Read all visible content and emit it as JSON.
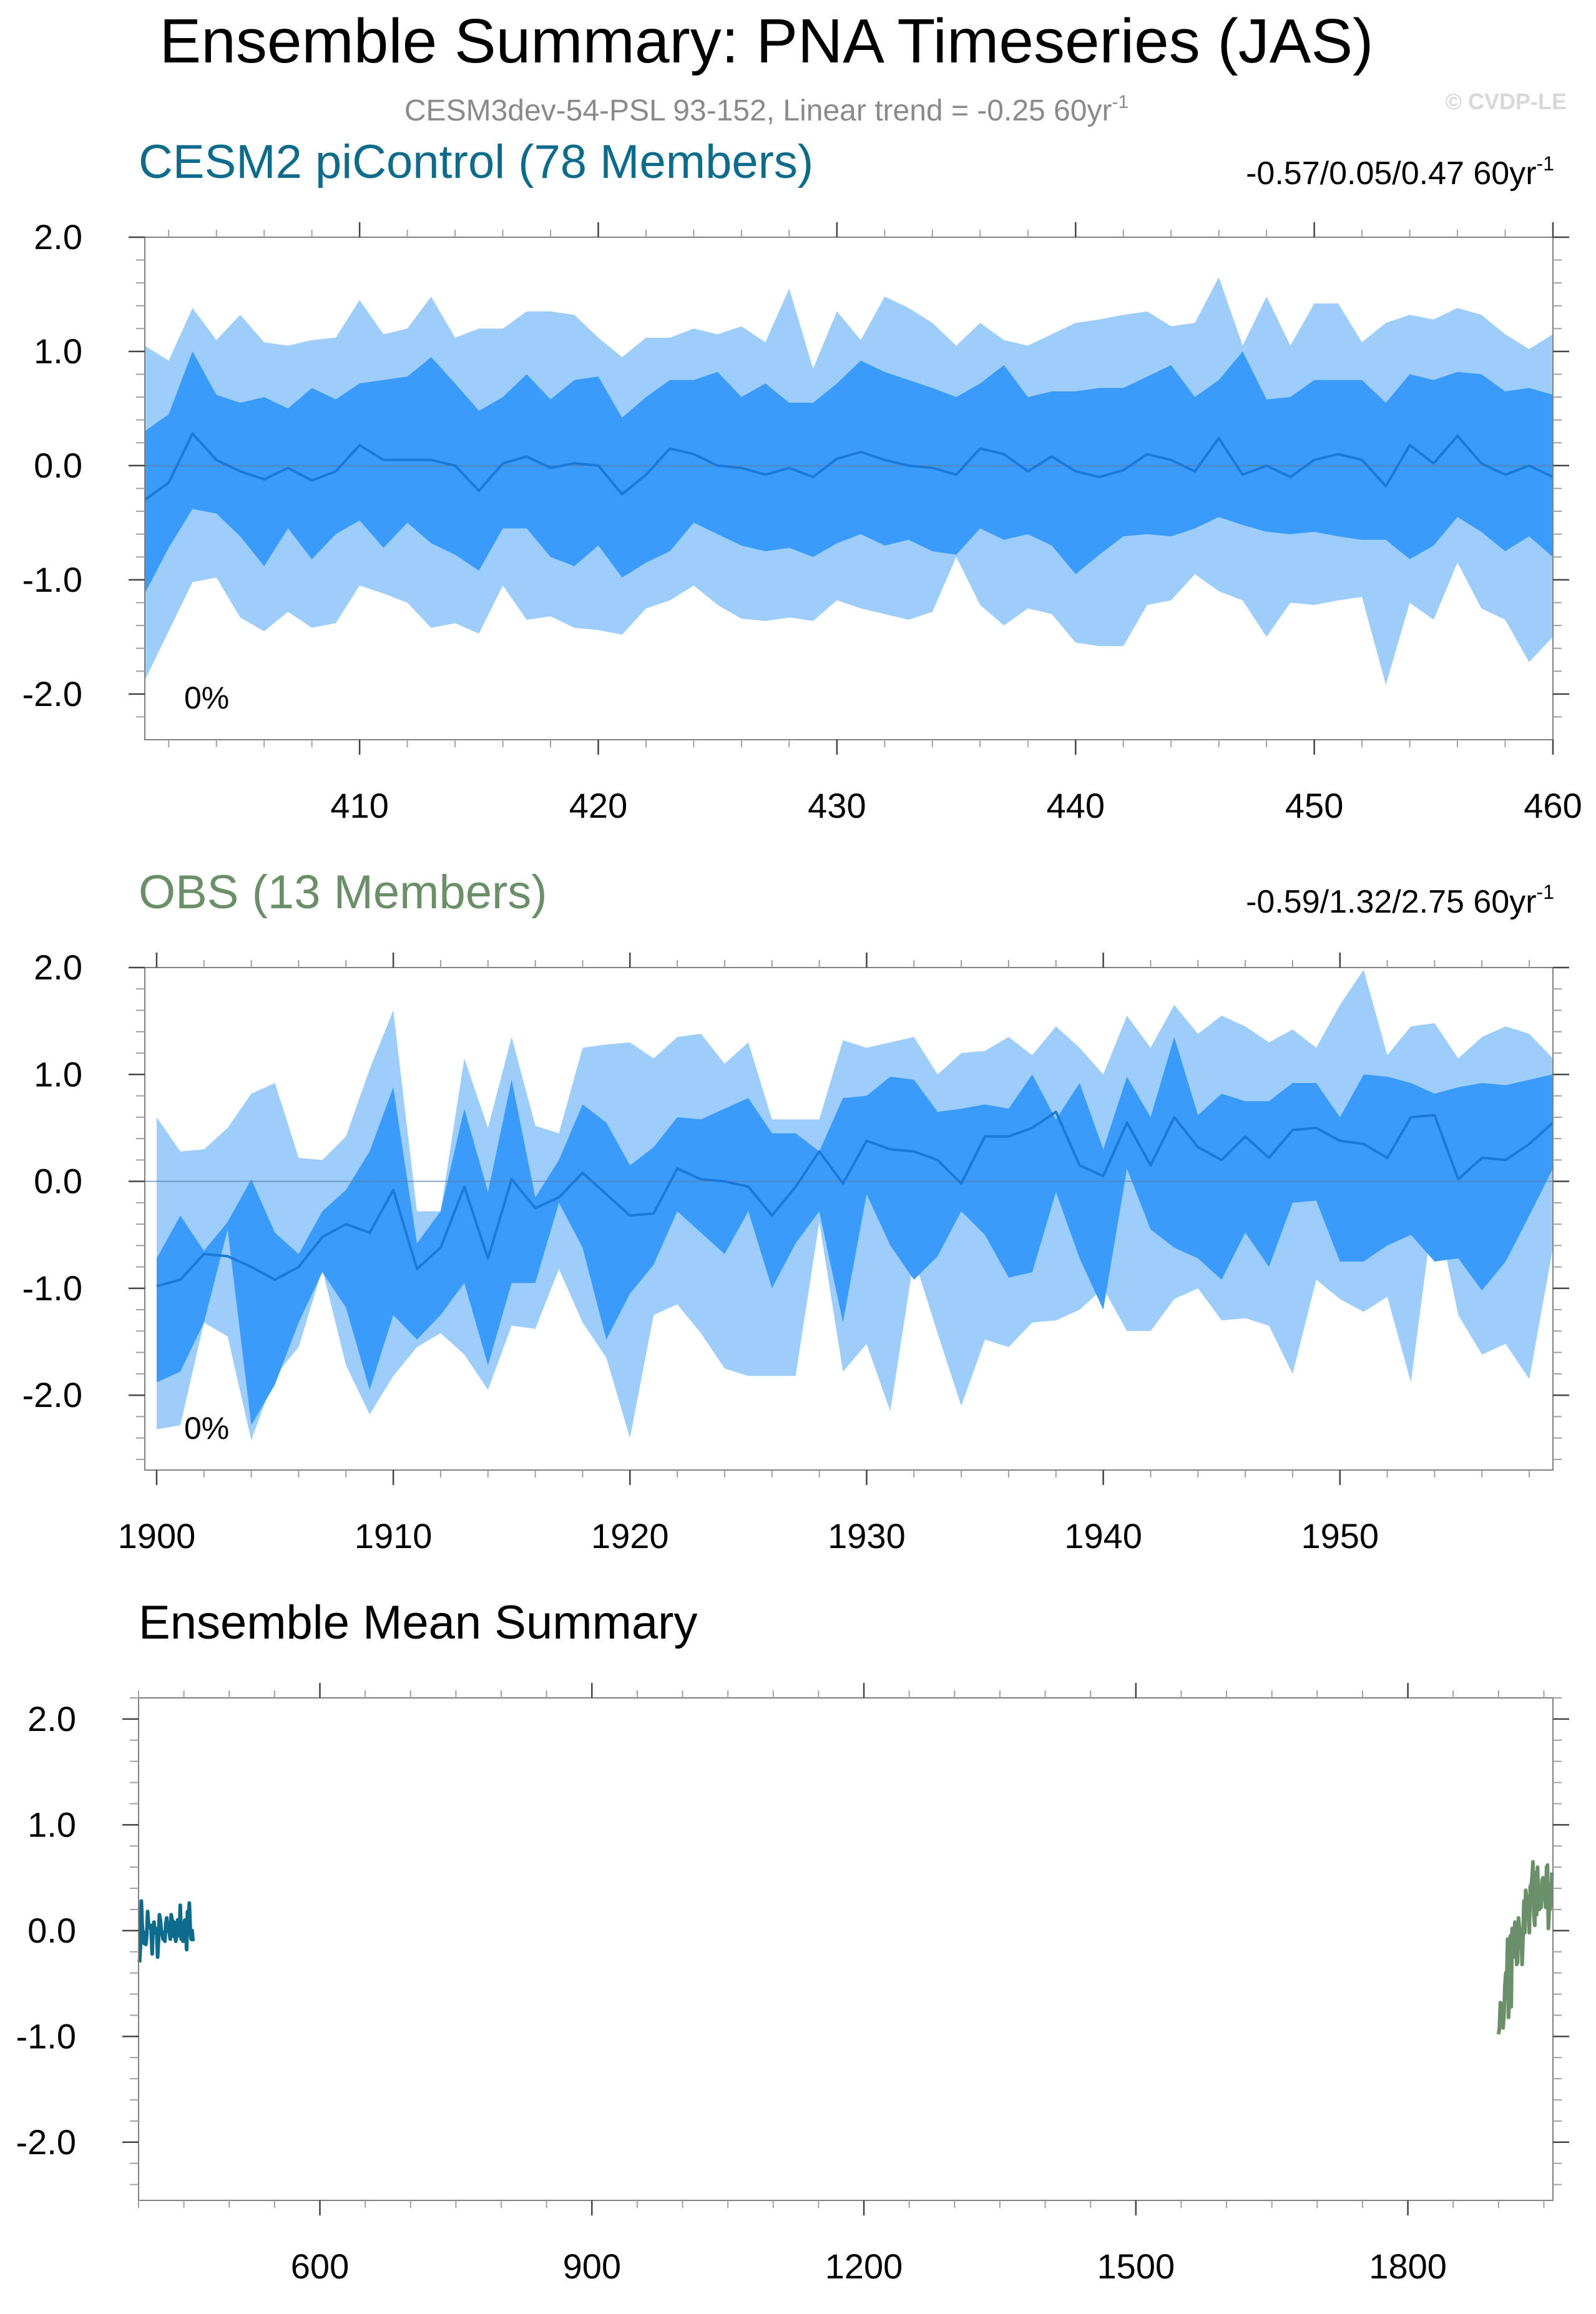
{
  "header": {
    "title": "Ensemble Summary: PNA Timeseries (JAS)",
    "subtitle_main": "CESM3dev-54-PSL 93-152, Linear trend = -0.25 60yr",
    "subtitle_sup": "-1",
    "copyright": "© CVDP-LE"
  },
  "colors": {
    "light_band": "#9dcdfb",
    "dark_band": "#3a9bfa",
    "mean_line": "#1b79d8",
    "cesm2": "#0f6b8c",
    "obs": "#6b8f68",
    "axis": "#000000",
    "minor_tick": "#a0a0a0"
  },
  "chart_data": [
    {
      "type": "area",
      "id": "cesm2",
      "title": "CESM2 piControl (78 Members)",
      "trend_main": "-0.57/0.05/0.47 60yr",
      "trend_sup": "-1",
      "percent_label": "0%",
      "xlim": [
        401,
        460
      ],
      "ylim": [
        -2.4,
        2.0
      ],
      "x_ticks": [
        410,
        420,
        430,
        440,
        450,
        460
      ],
      "x_tick_labels": [
        "410",
        "420",
        "430",
        "440",
        "450",
        "460"
      ],
      "y_ticks": [
        2.0,
        1.0,
        0.0,
        -1.0,
        -2.0
      ],
      "y_tick_labels": [
        "2.0",
        "1.0",
        "0.0",
        "-1.0",
        "-2.0"
      ],
      "x": [
        401,
        402,
        403,
        404,
        405,
        406,
        407,
        408,
        409,
        410,
        411,
        412,
        413,
        414,
        415,
        416,
        417,
        418,
        419,
        420,
        421,
        422,
        423,
        424,
        425,
        426,
        427,
        428,
        429,
        430,
        431,
        432,
        433,
        434,
        435,
        436,
        437,
        438,
        439,
        440,
        441,
        442,
        443,
        444,
        445,
        446,
        447,
        448,
        449,
        450,
        451,
        452,
        453,
        454,
        455,
        456,
        457,
        458,
        459,
        460
      ],
      "series": [
        {
          "name": "min",
          "values": [
            -1.88,
            -1.45,
            -1.02,
            -0.98,
            -1.33,
            -1.45,
            -1.28,
            -1.42,
            -1.38,
            -1.05,
            -1.12,
            -1.2,
            -1.42,
            -1.38,
            -1.47,
            -1.05,
            -1.35,
            -1.32,
            -1.42,
            -1.44,
            -1.48,
            -1.25,
            -1.18,
            -1.05,
            -1.22,
            -1.34,
            -1.36,
            -1.33,
            -1.36,
            -1.18,
            -1.25,
            -1.3,
            -1.35,
            -1.28,
            -0.8,
            -1.22,
            -1.4,
            -1.25,
            -1.3,
            -1.55,
            -1.58,
            -1.58,
            -1.22,
            -1.18,
            -0.95,
            -1.1,
            -1.18,
            -1.5,
            -1.2,
            -1.22,
            -1.18,
            -1.15,
            -1.92,
            -1.2,
            -1.35,
            -0.85,
            -1.25,
            -1.35,
            -1.72,
            -1.5
          ]
        },
        {
          "name": "p10",
          "values": [
            -1.12,
            -0.72,
            -0.38,
            -0.42,
            -0.62,
            -0.88,
            -0.55,
            -0.82,
            -0.6,
            -0.48,
            -0.72,
            -0.5,
            -0.68,
            -0.78,
            -0.92,
            -0.55,
            -0.55,
            -0.8,
            -0.88,
            -0.7,
            -0.98,
            -0.85,
            -0.75,
            -0.5,
            -0.6,
            -0.7,
            -0.75,
            -0.72,
            -0.8,
            -0.68,
            -0.6,
            -0.7,
            -0.65,
            -0.75,
            -0.78,
            -0.55,
            -0.65,
            -0.6,
            -0.7,
            -0.95,
            -0.78,
            -0.62,
            -0.6,
            -0.62,
            -0.55,
            -0.45,
            -0.52,
            -0.58,
            -0.6,
            -0.58,
            -0.62,
            -0.65,
            -0.65,
            -0.82,
            -0.7,
            -0.45,
            -0.58,
            -0.75,
            -0.62,
            -0.8
          ]
        },
        {
          "name": "mean",
          "values": [
            -0.3,
            -0.15,
            0.28,
            0.05,
            -0.05,
            -0.12,
            -0.02,
            -0.13,
            -0.05,
            0.18,
            0.05,
            0.05,
            0.05,
            0.0,
            -0.22,
            0.02,
            0.08,
            -0.02,
            0.02,
            0.0,
            -0.25,
            -0.08,
            0.15,
            0.1,
            0.0,
            -0.02,
            -0.08,
            -0.02,
            -0.1,
            0.06,
            0.12,
            0.05,
            0.0,
            -0.02,
            -0.08,
            0.15,
            0.1,
            -0.05,
            0.08,
            -0.05,
            -0.1,
            -0.04,
            0.1,
            0.05,
            -0.05,
            0.24,
            -0.08,
            0.0,
            -0.1,
            0.05,
            0.1,
            0.05,
            -0.18,
            0.18,
            0.02,
            0.26,
            0.02,
            -0.08,
            0.0,
            -0.1
          ]
        },
        {
          "name": "p90",
          "values": [
            0.3,
            0.45,
            1.0,
            0.62,
            0.55,
            0.6,
            0.5,
            0.68,
            0.58,
            0.72,
            0.75,
            0.78,
            0.95,
            0.72,
            0.48,
            0.6,
            0.8,
            0.58,
            0.75,
            0.78,
            0.42,
            0.6,
            0.75,
            0.75,
            0.82,
            0.6,
            0.72,
            0.55,
            0.55,
            0.72,
            0.92,
            0.82,
            0.75,
            0.68,
            0.6,
            0.72,
            0.88,
            0.6,
            0.65,
            0.65,
            0.68,
            0.68,
            0.78,
            0.88,
            0.6,
            0.75,
            1.0,
            0.58,
            0.6,
            0.75,
            0.75,
            0.75,
            0.55,
            0.8,
            0.75,
            0.82,
            0.8,
            0.65,
            0.68,
            0.62
          ]
        },
        {
          "name": "max",
          "values": [
            1.05,
            0.92,
            1.38,
            1.1,
            1.32,
            1.08,
            1.05,
            1.1,
            1.12,
            1.45,
            1.15,
            1.2,
            1.48,
            1.12,
            1.2,
            1.2,
            1.35,
            1.35,
            1.32,
            1.12,
            0.95,
            1.12,
            1.12,
            1.2,
            1.15,
            1.22,
            1.08,
            1.55,
            0.85,
            1.35,
            1.1,
            1.48,
            1.38,
            1.25,
            1.05,
            1.25,
            1.1,
            1.05,
            1.15,
            1.25,
            1.28,
            1.32,
            1.35,
            1.22,
            1.25,
            1.65,
            1.05,
            1.48,
            1.05,
            1.42,
            1.42,
            1.08,
            1.25,
            1.32,
            1.28,
            1.38,
            1.32,
            1.15,
            1.02,
            1.15
          ]
        }
      ]
    },
    {
      "type": "area",
      "id": "obs",
      "title": "OBS (13 Members)",
      "trend_main": "-0.59/1.32/2.75 60yr",
      "trend_sup": "-1",
      "percent_label": "0%",
      "xlim": [
        1899.5,
        1959
      ],
      "ylim": [
        -2.7,
        2.0
      ],
      "x_ticks": [
        1900,
        1910,
        1920,
        1930,
        1940,
        1950
      ],
      "x_tick_labels": [
        "1900",
        "1910",
        "1920",
        "1930",
        "1940",
        "1950"
      ],
      "y_ticks": [
        2.0,
        1.0,
        0.0,
        -1.0,
        -2.0
      ],
      "y_tick_labels": [
        "2.0",
        "1.0",
        "0.0",
        "-1.0",
        "-2.0"
      ],
      "x": [
        1900,
        1901,
        1902,
        1903,
        1904,
        1905,
        1906,
        1907,
        1908,
        1909,
        1910,
        1911,
        1912,
        1913,
        1914,
        1915,
        1916,
        1917,
        1918,
        1919,
        1920,
        1921,
        1922,
        1923,
        1924,
        1925,
        1926,
        1927,
        1928,
        1929,
        1930,
        1931,
        1932,
        1933,
        1934,
        1935,
        1936,
        1937,
        1938,
        1939,
        1940,
        1941,
        1942,
        1943,
        1944,
        1945,
        1946,
        1947,
        1948,
        1949,
        1950,
        1951,
        1952,
        1953,
        1954,
        1955,
        1956,
        1957,
        1958,
        1959
      ],
      "series": [
        {
          "name": "min",
          "values": [
            -2.32,
            -2.28,
            -1.32,
            -1.45,
            -2.42,
            -1.82,
            -1.55,
            -0.82,
            -1.72,
            -2.18,
            -1.82,
            -1.55,
            -1.42,
            -1.62,
            -1.95,
            -1.35,
            -1.38,
            -0.82,
            -1.32,
            -1.65,
            -2.4,
            -1.25,
            -1.15,
            -1.42,
            -1.75,
            -1.82,
            -1.82,
            -1.82,
            -0.38,
            -1.78,
            -1.52,
            -2.15,
            -0.72,
            -1.42,
            -2.1,
            -1.48,
            -1.55,
            -1.32,
            -1.3,
            -1.2,
            -1.0,
            -1.4,
            -1.4,
            -1.1,
            -1.0,
            -1.3,
            -1.28,
            -1.35,
            -1.8,
            -0.92,
            -1.1,
            -1.22,
            -1.08,
            -1.88,
            -0.18,
            -1.25,
            -1.62,
            -1.52,
            -1.85,
            -0.62
          ]
        },
        {
          "name": "p10",
          "values": [
            -1.88,
            -1.78,
            -1.32,
            -0.45,
            -2.28,
            -1.9,
            -1.32,
            -0.85,
            -1.18,
            -1.95,
            -1.25,
            -1.48,
            -1.25,
            -0.95,
            -1.72,
            -0.95,
            -0.95,
            -0.2,
            -0.62,
            -1.48,
            -1.05,
            -0.78,
            -0.28,
            -0.48,
            -0.68,
            -0.28,
            -1.0,
            -0.58,
            -0.28,
            -1.32,
            -0.12,
            -0.6,
            -0.92,
            -0.7,
            -0.28,
            -0.5,
            -0.9,
            -0.85,
            -0.1,
            -0.72,
            -1.2,
            0.12,
            -0.45,
            -0.62,
            -0.72,
            -0.92,
            -0.48,
            -0.8,
            -0.2,
            -0.18,
            -0.75,
            -0.75,
            -0.6,
            -0.5,
            -0.75,
            -0.72,
            -1.02,
            -0.75,
            -0.32,
            0.12
          ]
        },
        {
          "name": "mean",
          "values": [
            -0.98,
            -0.92,
            -0.68,
            -0.7,
            -0.8,
            -0.92,
            -0.8,
            -0.52,
            -0.4,
            -0.48,
            -0.08,
            -0.82,
            -0.62,
            -0.05,
            -0.72,
            0.02,
            -0.25,
            -0.15,
            0.08,
            -0.12,
            -0.32,
            -0.3,
            0.12,
            0.02,
            0.0,
            -0.05,
            -0.32,
            -0.05,
            0.28,
            -0.02,
            0.38,
            0.3,
            0.28,
            0.2,
            -0.02,
            0.42,
            0.42,
            0.5,
            0.65,
            0.15,
            0.05,
            0.55,
            0.15,
            0.6,
            0.32,
            0.2,
            0.42,
            0.22,
            0.48,
            0.5,
            0.38,
            0.35,
            0.22,
            0.6,
            0.62,
            0.02,
            0.22,
            0.2,
            0.35,
            0.55
          ]
        },
        {
          "name": "p90",
          "values": [
            -0.72,
            -0.32,
            -0.65,
            -0.38,
            0.02,
            -0.48,
            -0.68,
            -0.28,
            -0.08,
            0.28,
            0.88,
            -0.58,
            -0.28,
            0.68,
            -0.1,
            0.95,
            -0.15,
            0.2,
            0.72,
            0.55,
            0.15,
            0.32,
            0.6,
            0.58,
            0.68,
            0.78,
            0.45,
            0.45,
            0.28,
            0.78,
            0.8,
            0.98,
            0.95,
            0.65,
            0.68,
            0.72,
            0.68,
            1.0,
            0.58,
            0.92,
            0.3,
            0.98,
            0.6,
            1.35,
            0.62,
            0.82,
            0.75,
            0.75,
            0.92,
            0.92,
            0.6,
            1.0,
            0.98,
            0.92,
            0.82,
            0.88,
            0.92,
            0.9,
            0.95,
            1.0
          ]
        },
        {
          "name": "max",
          "values": [
            0.6,
            0.28,
            0.3,
            0.5,
            0.82,
            0.92,
            0.22,
            0.2,
            0.42,
            1.05,
            1.6,
            -0.28,
            -0.28,
            1.15,
            0.5,
            1.35,
            0.52,
            0.45,
            1.25,
            1.28,
            1.3,
            1.15,
            1.35,
            1.38,
            1.1,
            1.3,
            0.58,
            0.58,
            0.58,
            1.32,
            1.25,
            1.3,
            1.35,
            1.0,
            1.2,
            1.22,
            1.35,
            1.18,
            1.45,
            1.25,
            1.0,
            1.55,
            1.25,
            1.65,
            1.38,
            1.55,
            1.45,
            1.3,
            1.42,
            1.25,
            1.65,
            1.98,
            1.18,
            1.45,
            1.48,
            1.15,
            1.35,
            1.45,
            1.38,
            1.15
          ]
        }
      ]
    },
    {
      "type": "line",
      "id": "ensemble_mean",
      "title": "Ensemble Mean Summary",
      "xlim": [
        400,
        1960
      ],
      "ylim": [
        -2.55,
        2.2
      ],
      "x_ticks": [
        600,
        900,
        1200,
        1500,
        1800
      ],
      "x_tick_labels": [
        "600",
        "900",
        "1200",
        "1500",
        "1800"
      ],
      "y_ticks": [
        2.0,
        1.0,
        0.0,
        -1.0,
        -2.0
      ],
      "y_tick_labels": [
        "2.0",
        "1.0",
        "0.0",
        "-1.0",
        "-2.0"
      ],
      "series": [
        {
          "name": "CESM2 piControl",
          "ref": "cesm2",
          "color_key": "cesm2"
        },
        {
          "name": "OBS",
          "ref": "obs",
          "color_key": "obs"
        }
      ]
    }
  ]
}
